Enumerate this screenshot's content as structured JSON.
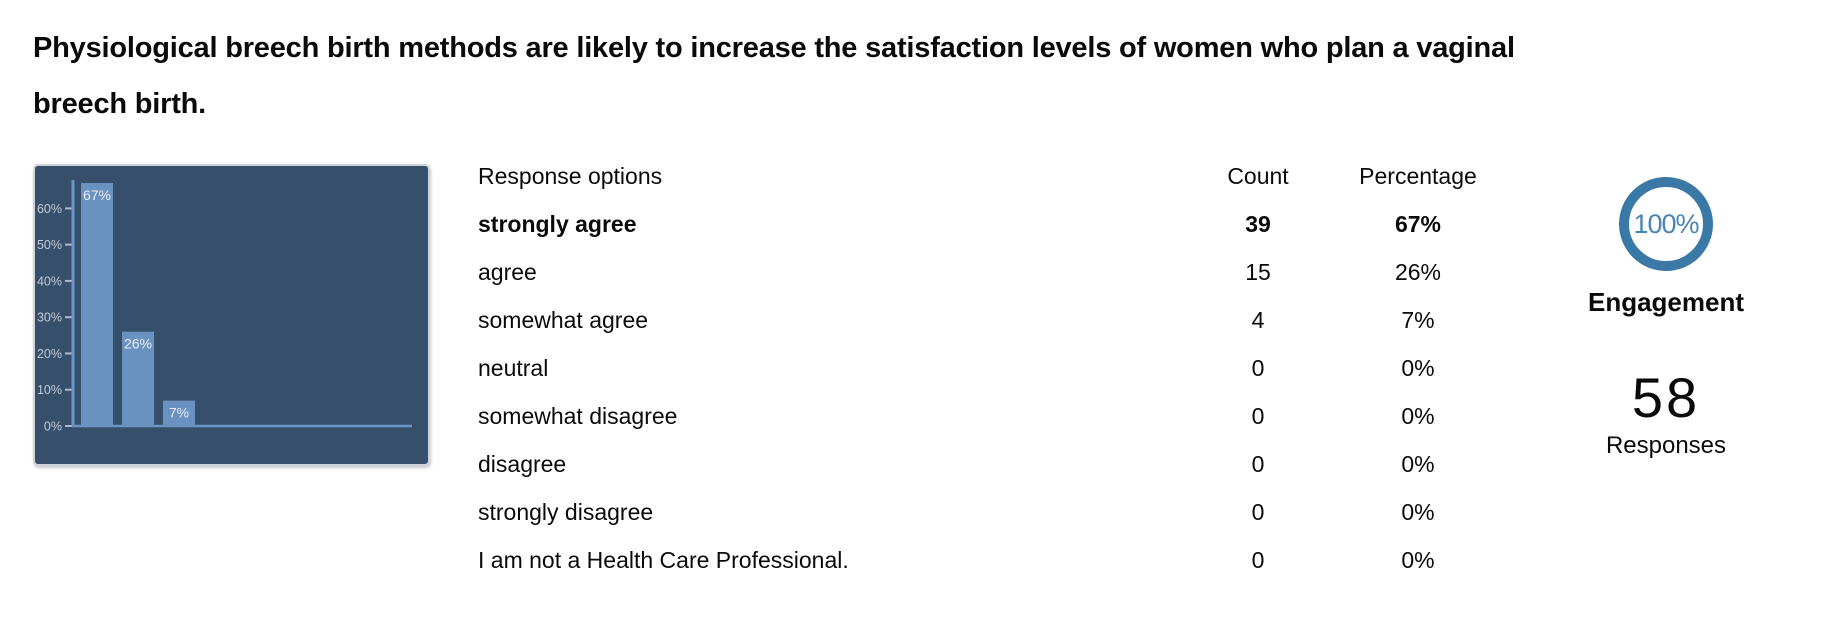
{
  "question": {
    "title": "Physiological breech birth methods are likely to increase the satisfaction levels of women who plan a vaginal breech birth."
  },
  "table": {
    "header": {
      "options": "Response options",
      "count": "Count",
      "percentage": "Percentage"
    },
    "rows": [
      {
        "label": "strongly agree",
        "count": "39",
        "percentage": "67%"
      },
      {
        "label": "agree",
        "count": "15",
        "percentage": "26%"
      },
      {
        "label": "somewhat agree",
        "count": "4",
        "percentage": "7%"
      },
      {
        "label": "neutral",
        "count": "0",
        "percentage": "0%"
      },
      {
        "label": "somewhat disagree",
        "count": "0",
        "percentage": "0%"
      },
      {
        "label": "disagree",
        "count": "0",
        "percentage": "0%"
      },
      {
        "label": "strongly disagree",
        "count": "0",
        "percentage": "0%"
      },
      {
        "label": "I am not a Health Care Professional.",
        "count": "0",
        "percentage": "0%"
      }
    ]
  },
  "engagement": {
    "value": "100%",
    "label": "Engagement"
  },
  "responses": {
    "value": "58",
    "label": "Responses"
  },
  "chart_data": {
    "type": "bar",
    "title": "",
    "xlabel": "",
    "ylabel": "",
    "categories": [
      "strongly agree",
      "agree",
      "somewhat agree",
      "neutral",
      "somewhat disagree",
      "disagree",
      "strongly disagree",
      "I am not a Health Care Professional."
    ],
    "values": [
      67,
      26,
      7,
      0,
      0,
      0,
      0,
      0
    ],
    "bar_labels": [
      "67%",
      "26%",
      "7%",
      "",
      "",
      "",
      "",
      ""
    ],
    "yticks": [
      0,
      10,
      20,
      30,
      40,
      50,
      60
    ],
    "ytick_labels": [
      "0%",
      "10%",
      "20%",
      "30%",
      "40%",
      "50%",
      "60%"
    ],
    "ylim": [
      0,
      72
    ],
    "grid": false,
    "legend": false,
    "colors": {
      "background": "#36506C",
      "bar": "#6A92C0",
      "axis": "#6A95C6",
      "tick": "#AEBBCB",
      "tick_label": "#C3CBD8",
      "bar_label": "#EAEEF4",
      "border": "#CFD3D8"
    }
  },
  "theme": {
    "accent_blue": "#3A79A5",
    "engagement_text_blue": "#4986B3",
    "text": "#0A0A0A"
  }
}
